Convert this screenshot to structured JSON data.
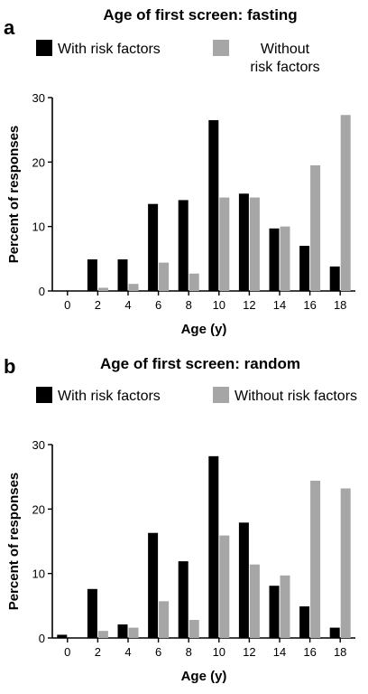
{
  "colors": {
    "with": "#000000",
    "without": "#a6a6a6",
    "axis": "#000000"
  },
  "chart_data": [
    {
      "type": "bar",
      "panel": "a",
      "title": "Age of first screen: fasting",
      "xlabel": "Age (y)",
      "ylabel": "Percent of responses",
      "ylim": [
        0,
        30
      ],
      "yticks": [
        "0",
        "10",
        "20",
        "30"
      ],
      "categories": [
        "0",
        "2",
        "4",
        "6",
        "8",
        "10",
        "12",
        "14",
        "16",
        "18"
      ],
      "legend": [
        "With risk factors",
        "Without",
        "risk factors"
      ],
      "series": [
        {
          "name": "With risk factors",
          "values": [
            0,
            4.9,
            4.9,
            13.5,
            14.1,
            26.5,
            15.1,
            9.7,
            7.0,
            3.8
          ]
        },
        {
          "name": "Without risk factors",
          "values": [
            0,
            0.5,
            1.1,
            4.4,
            2.7,
            14.5,
            14.5,
            10.0,
            19.5,
            27.3
          ]
        }
      ]
    },
    {
      "type": "bar",
      "panel": "b",
      "title": "Age of first screen: random",
      "xlabel": "Age (y)",
      "ylabel": "Percent of responses",
      "ylim": [
        0,
        30
      ],
      "yticks": [
        "0",
        "10",
        "20",
        "30"
      ],
      "categories": [
        "0",
        "2",
        "4",
        "6",
        "8",
        "10",
        "12",
        "14",
        "16",
        "18"
      ],
      "legend": [
        "With risk factors",
        "Without risk factors"
      ],
      "series": [
        {
          "name": "With risk factors",
          "values": [
            0.5,
            7.6,
            2.1,
            16.3,
            11.9,
            28.2,
            17.9,
            8.1,
            4.9,
            1.6
          ]
        },
        {
          "name": "Without risk factors",
          "values": [
            0,
            1.1,
            1.6,
            5.7,
            2.8,
            15.9,
            11.4,
            9.7,
            24.4,
            23.2
          ]
        }
      ]
    }
  ]
}
